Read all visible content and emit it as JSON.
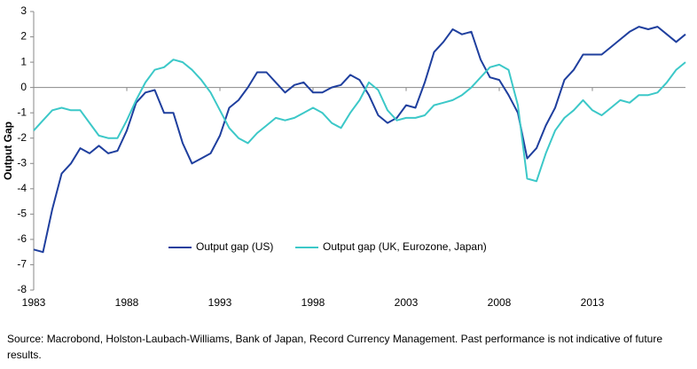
{
  "chart_data": {
    "type": "line",
    "y_label": "Output Gap",
    "x": [
      1983,
      1983.5,
      1984,
      1984.5,
      1985,
      1985.5,
      1986,
      1986.5,
      1987,
      1987.5,
      1988,
      1988.5,
      1989,
      1989.5,
      1990,
      1990.5,
      1991,
      1991.5,
      1992,
      1992.5,
      1993,
      1993.5,
      1994,
      1994.5,
      1995,
      1995.5,
      1996,
      1996.5,
      1997,
      1997.5,
      1998,
      1998.5,
      1999,
      1999.5,
      2000,
      2000.5,
      2001,
      2001.5,
      2002,
      2002.5,
      2003,
      2003.5,
      2004,
      2004.5,
      2005,
      2005.5,
      2006,
      2006.5,
      2007,
      2007.5,
      2008,
      2008.5,
      2009,
      2009.5,
      2010,
      2010.5,
      2011,
      2011.5,
      2012,
      2012.5,
      2013,
      2013.5,
      2014,
      2014.5,
      2015,
      2015.5,
      2016,
      2016.5,
      2017,
      2017.5,
      2018
    ],
    "series": [
      {
        "name": "Output gap (US)",
        "color": "#1f3f9e",
        "values": [
          -6.4,
          -6.5,
          -4.8,
          -3.4,
          -3.0,
          -2.4,
          -2.6,
          -2.3,
          -2.6,
          -2.5,
          -1.7,
          -0.6,
          -0.2,
          -0.1,
          -1.0,
          -1.0,
          -2.2,
          -3.0,
          -2.8,
          -2.6,
          -1.9,
          -0.8,
          -0.5,
          0.0,
          0.6,
          0.6,
          0.2,
          -0.2,
          0.1,
          0.2,
          -0.2,
          -0.2,
          0.0,
          0.1,
          0.5,
          0.3,
          -0.3,
          -1.1,
          -1.4,
          -1.2,
          -0.7,
          -0.8,
          0.2,
          1.4,
          1.8,
          2.3,
          2.1,
          2.2,
          1.1,
          0.4,
          0.3,
          -0.3,
          -1.0,
          -2.8,
          -2.4,
          -1.5,
          -0.8,
          0.3,
          0.7,
          1.3,
          1.3,
          1.3,
          1.6,
          1.9,
          2.2,
          2.4,
          2.3,
          2.4,
          2.1,
          1.8,
          2.1
        ]
      },
      {
        "name": "Output gap (UK, Eurozone, Japan)",
        "color": "#3cc8c8",
        "values": [
          -1.7,
          -1.3,
          -0.9,
          -0.8,
          -0.9,
          -0.9,
          -1.4,
          -1.9,
          -2.0,
          -2.0,
          -1.3,
          -0.5,
          0.2,
          0.7,
          0.8,
          1.1,
          1.0,
          0.7,
          0.3,
          -0.2,
          -0.9,
          -1.6,
          -2.0,
          -2.2,
          -1.8,
          -1.5,
          -1.2,
          -1.3,
          -1.2,
          -1.0,
          -0.8,
          -1.0,
          -1.4,
          -1.6,
          -1.0,
          -0.5,
          0.2,
          -0.1,
          -0.9,
          -1.3,
          -1.2,
          -1.2,
          -1.1,
          -0.7,
          -0.6,
          -0.5,
          -0.3,
          0.0,
          0.4,
          0.8,
          0.9,
          0.7,
          -0.7,
          -3.6,
          -3.7,
          -2.6,
          -1.7,
          -1.2,
          -0.9,
          -0.5,
          -0.9,
          -1.1,
          -0.8,
          -0.5,
          -0.6,
          -0.3,
          -0.3,
          -0.2,
          0.2,
          0.7,
          1.0
        ]
      }
    ],
    "xlim": [
      1983,
      2018
    ],
    "xticks": [
      1983,
      1988,
      1993,
      1998,
      2003,
      2008,
      2013
    ],
    "ylim": [
      -8,
      3
    ],
    "yticks": [
      -8,
      -7,
      -6,
      -5,
      -4,
      -3,
      -2,
      -1,
      0,
      1,
      2,
      3
    ],
    "grid": false,
    "source": "Source: Macrobond, Holston-Laubach-Williams, Bank of Japan, Record Currency Management. Past performance is not indicative of future results."
  }
}
